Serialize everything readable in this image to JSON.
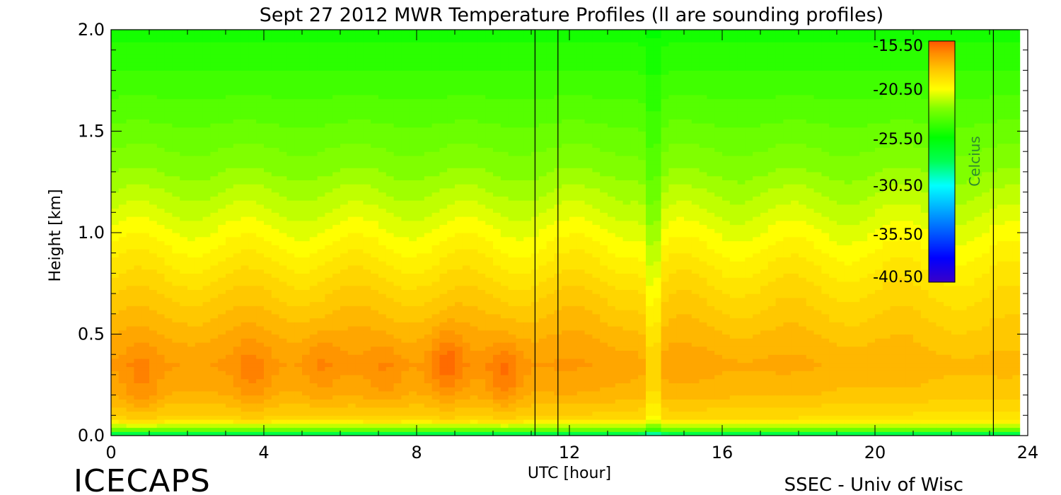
{
  "chart_data": {
    "type": "heatmap",
    "title": "Sept 27 2012 MWR Temperature Profiles (ll are sounding profiles)",
    "xlabel": "UTC [hour]",
    "ylabel": "Height [km]",
    "xlim": [
      0,
      24
    ],
    "ylim": [
      0,
      2.0
    ],
    "x_ticks": [
      "0",
      "4",
      "8",
      "12",
      "16",
      "20",
      "24"
    ],
    "y_ticks": [
      "0.0",
      "0.5",
      "1.0",
      "1.5",
      "2.0"
    ],
    "colorbar": {
      "label": "Celcius",
      "ticks": [
        "-15.50",
        "-20.50",
        "-25.50",
        "-30.50",
        "-35.50",
        "-40.50"
      ],
      "range": [
        -40.5,
        -15.5
      ]
    },
    "sounding_times_utc": [
      11.1,
      11.7,
      23.1
    ],
    "missing_data_after_utc": 23.8,
    "value_by_height": {
      "heights_km": [
        0.0,
        0.03,
        0.08,
        0.2,
        0.35,
        0.5,
        0.7,
        0.9,
        1.1,
        1.3,
        1.6,
        2.0
      ],
      "temperature_c": [
        -30.0,
        -23.0,
        -19.0,
        -17.8,
        -17.2,
        -17.8,
        -18.8,
        -20.0,
        -21.2,
        -22.3,
        -23.5,
        -25.0
      ]
    },
    "features": [
      {
        "utc": 0.8,
        "height_km": 0.25,
        "anomaly_c": 0.8
      },
      {
        "utc": 3.7,
        "height_km": 0.3,
        "anomaly_c": 0.8
      },
      {
        "utc": 5.5,
        "height_km": 0.35,
        "anomaly_c": 0.6
      },
      {
        "utc": 7.2,
        "height_km": 0.3,
        "anomaly_c": 0.6
      },
      {
        "utc": 8.8,
        "height_km": 0.35,
        "anomaly_c": 1.3
      },
      {
        "utc": 10.3,
        "height_km": 0.3,
        "anomaly_c": 1.2
      },
      {
        "utc": 14.2,
        "height_km": 0.6,
        "anomaly_c": -2.0
      }
    ]
  },
  "footer": {
    "brand": "ICECAPS",
    "credit": "SSEC - Univ of Wisc"
  },
  "colors": {
    "colormap": [
      "#3a00c8",
      "#0000ff",
      "#00aaff",
      "#00ffff",
      "#00ff55",
      "#00ff00",
      "#80ff00",
      "#ffff00",
      "#ffc800",
      "#ff8c00",
      "#ff5500"
    ],
    "frame": "#000000"
  }
}
